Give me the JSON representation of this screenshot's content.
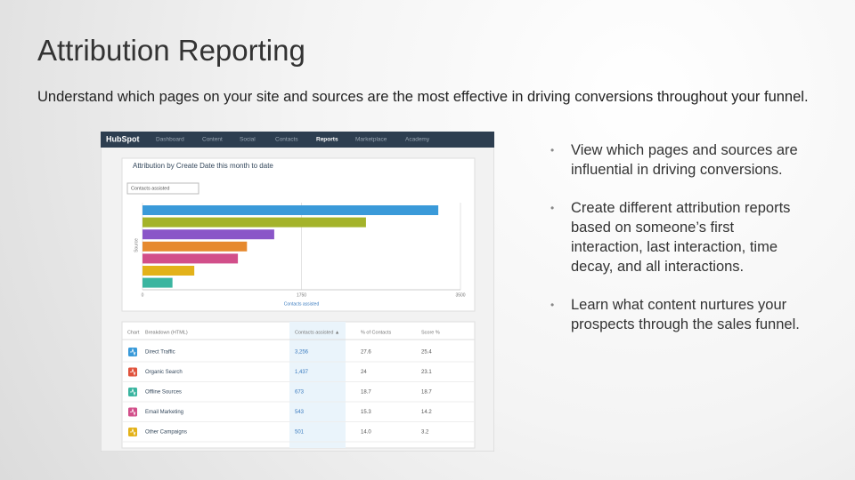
{
  "title": "Attribution Reporting",
  "subtitle": "Understand which pages on your site and sources are the most effective in driving conversions throughout your funnel.",
  "bullets": [
    "View which pages and sources are influential in driving conversions.",
    "Create different attribution reports based on someone’s first interaction, last interaction, time decay, and all interactions.",
    "Learn what content nurtures your prospects through the sales funnel."
  ],
  "screenshot": {
    "nav": [
      "HubSpot",
      "Dashboard",
      "Content",
      "Social",
      "Contacts",
      "Reports",
      "Marketplace",
      "Academy"
    ],
    "report_title": "Attribution by Create Date this month to date",
    "dropdown": "Contacts assisted",
    "chart_data": {
      "type": "bar",
      "y_label": "Source",
      "x_label": "Contacts assisted",
      "values": [
        3256,
        2460,
        1450,
        1150,
        1050,
        570,
        330
      ],
      "colors": [
        "#3a9ad9",
        "#a4b32a",
        "#8a56c8",
        "#e6892e",
        "#d24f8a",
        "#e3b21a",
        "#3bb5a0"
      ],
      "xlim": [
        0,
        3500
      ],
      "xticks": [
        0,
        1750,
        3500
      ],
      "grid": true
    },
    "table": {
      "header": [
        "Chart",
        "Breakdown (HTML)",
        "Contacts assisted ▲",
        "% of Contacts",
        "Score %"
      ],
      "rows": [
        [
          "Direct Traffic",
          "3,256",
          "27.6",
          "25.4"
        ],
        [
          "Organic Search",
          "1,437",
          "24",
          "23.1"
        ],
        [
          "Offline Sources",
          "673",
          "18.7",
          "18.7"
        ],
        [
          "Email Marketing",
          "543",
          "15.3",
          "14.2"
        ],
        [
          "Other Campaigns",
          "501",
          "14.0",
          "3.2"
        ]
      ],
      "row_colors": [
        "#3a9ad9",
        "#e0533d",
        "#3bb5a0",
        "#d24f8a",
        "#e3b21a"
      ]
    }
  }
}
